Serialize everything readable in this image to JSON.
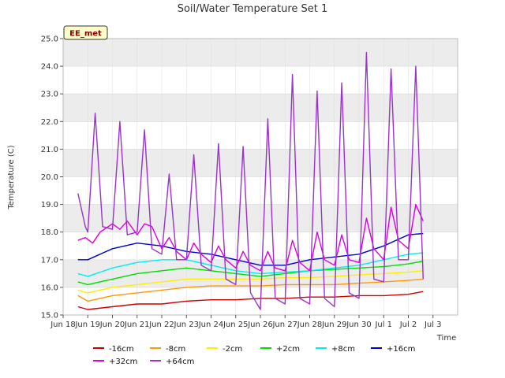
{
  "chart_data": {
    "type": "line",
    "title": "Soil/Water Temperature Set 1",
    "xlabel": "Time",
    "ylabel": "Temperature (C)",
    "badge": "EE_met",
    "ylim": [
      15.0,
      25.0
    ],
    "y_ticks": [
      "15.0",
      "16.0",
      "17.0",
      "18.0",
      "19.0",
      "20.0",
      "21.0",
      "22.0",
      "23.0",
      "24.0",
      "25.0"
    ],
    "x_ticks": [
      "Jun 18",
      "Jun 19",
      "Jun 20",
      "Jun 21",
      "Jun 22",
      "Jun 23",
      "Jun 24",
      "Jun 25",
      "Jun 26",
      "Jun 27",
      "Jun 28",
      "Jun 29",
      "Jun 30",
      "Jul 1",
      "Jul 2",
      "Jul 3"
    ],
    "legend_position": "bottom",
    "grid": true,
    "series": [
      {
        "name": "-16cm",
        "color": "#cc0000",
        "x": [
          0.6,
          1,
          2,
          3,
          4,
          5,
          6,
          7,
          8,
          9,
          10,
          11,
          12,
          13,
          14,
          14.6
        ],
        "values": [
          15.3,
          15.2,
          15.3,
          15.4,
          15.4,
          15.5,
          15.55,
          15.55,
          15.6,
          15.6,
          15.65,
          15.65,
          15.7,
          15.7,
          15.75,
          15.85
        ]
      },
      {
        "name": "-8cm",
        "color": "#ff9900",
        "x": [
          0.6,
          1,
          2,
          3,
          4,
          5,
          6,
          7,
          8,
          9,
          10,
          11,
          12,
          13,
          14,
          14.6
        ],
        "values": [
          15.7,
          15.5,
          15.7,
          15.8,
          15.9,
          16.0,
          16.05,
          16.05,
          16.05,
          16.1,
          16.1,
          16.1,
          16.15,
          16.2,
          16.25,
          16.3
        ]
      },
      {
        "name": "-2cm",
        "color": "#ffee00",
        "x": [
          0.6,
          1,
          2,
          3,
          4,
          5,
          6,
          7,
          8,
          9,
          10,
          11,
          12,
          13,
          14,
          14.6
        ],
        "values": [
          15.9,
          15.8,
          16.0,
          16.1,
          16.2,
          16.3,
          16.3,
          16.3,
          16.3,
          16.35,
          16.35,
          16.4,
          16.45,
          16.5,
          16.55,
          16.6
        ]
      },
      {
        "name": "+2cm",
        "color": "#00dd00",
        "x": [
          0.6,
          1,
          2,
          3,
          4,
          5,
          6,
          7,
          8,
          9,
          10,
          11,
          12,
          13,
          14,
          14.6
        ],
        "values": [
          16.2,
          16.1,
          16.3,
          16.5,
          16.6,
          16.7,
          16.6,
          16.5,
          16.4,
          16.5,
          16.6,
          16.65,
          16.7,
          16.75,
          16.85,
          16.95
        ]
      },
      {
        "name": "+8cm",
        "color": "#00eeee",
        "x": [
          0.6,
          1,
          2,
          3,
          4,
          5,
          6,
          7,
          8,
          9,
          10,
          11,
          12,
          13,
          14,
          14.6
        ],
        "values": [
          16.5,
          16.4,
          16.7,
          16.9,
          17.0,
          17.0,
          16.8,
          16.6,
          16.5,
          16.55,
          16.6,
          16.7,
          16.8,
          17.0,
          17.2,
          17.25
        ]
      },
      {
        "name": "+16cm",
        "color": "#0000cc",
        "x": [
          0.6,
          1,
          2,
          3,
          4,
          5,
          6,
          7,
          8,
          9,
          10,
          11,
          12,
          13,
          14,
          14.6
        ],
        "values": [
          17.0,
          17.0,
          17.4,
          17.6,
          17.5,
          17.3,
          17.2,
          17.0,
          16.8,
          16.8,
          17.0,
          17.1,
          17.2,
          17.5,
          17.9,
          17.95
        ]
      },
      {
        "name": "+32cm",
        "color": "#dd00dd",
        "x": [
          0.6,
          0.9,
          1.2,
          1.5,
          2.0,
          2.3,
          2.6,
          3.0,
          3.3,
          3.6,
          4.0,
          4.3,
          4.6,
          5.0,
          5.3,
          5.6,
          6.0,
          6.3,
          6.6,
          7.0,
          7.3,
          7.6,
          8.0,
          8.3,
          8.6,
          9.0,
          9.3,
          9.6,
          10.0,
          10.3,
          10.6,
          11.0,
          11.3,
          11.6,
          12.0,
          12.3,
          12.6,
          13.0,
          13.3,
          13.6,
          14.0,
          14.3,
          14.6
        ],
        "values": [
          17.7,
          17.8,
          17.6,
          18.0,
          18.3,
          18.1,
          18.4,
          17.9,
          18.3,
          18.2,
          17.4,
          17.8,
          17.3,
          17.0,
          17.6,
          17.2,
          16.9,
          17.5,
          17.0,
          16.7,
          17.3,
          16.8,
          16.6,
          17.3,
          16.7,
          16.6,
          17.7,
          16.9,
          16.6,
          18.0,
          17.0,
          16.8,
          17.9,
          17.0,
          16.9,
          18.5,
          17.4,
          17.0,
          18.9,
          17.7,
          17.4,
          19.0,
          18.4
        ]
      },
      {
        "name": "+64cm",
        "color": "#9933cc",
        "x": [
          0.6,
          0.9,
          1.0,
          1.3,
          1.6,
          2.0,
          2.3,
          2.6,
          3.0,
          3.3,
          3.6,
          4.0,
          4.3,
          4.6,
          5.0,
          5.3,
          5.6,
          6.0,
          6.3,
          6.6,
          7.0,
          7.3,
          7.6,
          8.0,
          8.3,
          8.6,
          9.0,
          9.3,
          9.6,
          10.0,
          10.3,
          10.6,
          11.0,
          11.3,
          11.6,
          12.0,
          12.3,
          12.6,
          13.0,
          13.3,
          13.6,
          14.0,
          14.3,
          14.6
        ],
        "values": [
          19.4,
          18.2,
          18.0,
          22.3,
          18.2,
          18.1,
          22.0,
          17.9,
          18.0,
          21.7,
          17.4,
          17.2,
          20.1,
          17.0,
          17.0,
          20.8,
          16.8,
          16.6,
          21.2,
          16.3,
          16.1,
          21.1,
          15.8,
          15.2,
          22.1,
          15.6,
          15.4,
          23.7,
          15.6,
          15.4,
          23.1,
          15.6,
          15.3,
          23.4,
          15.8,
          15.6,
          24.5,
          16.3,
          16.2,
          23.9,
          17.0,
          17.0,
          24.0,
          16.3
        ]
      }
    ]
  }
}
